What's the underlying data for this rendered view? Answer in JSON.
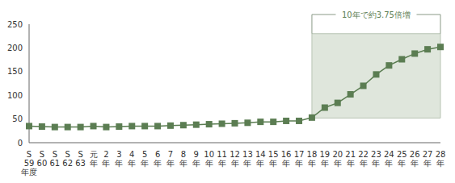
{
  "chart_data": {
    "type": "line",
    "categories": [
      "S59年度",
      "S60",
      "S61",
      "S62",
      "S63",
      "元年",
      "2年",
      "3年",
      "4年",
      "5年",
      "6年",
      "7年",
      "8年",
      "9年",
      "10年",
      "11年",
      "12年",
      "13年",
      "14年",
      "15年",
      "16年",
      "17年",
      "18年",
      "19年",
      "20年",
      "21年",
      "22年",
      "23年",
      "24年",
      "25年",
      "26年",
      "27年",
      "28年"
    ],
    "values": [
      35,
      34,
      33,
      33,
      33,
      35,
      33,
      34,
      35,
      35,
      35,
      36,
      37,
      38,
      39,
      40,
      41,
      42,
      44,
      44,
      46,
      46,
      53,
      74,
      84,
      102,
      120,
      144,
      163,
      176,
      188,
      197,
      202
    ],
    "color": "#5b7d52",
    "marker": "square",
    "ylim": [
      0,
      250
    ],
    "yticks": [
      0,
      50,
      100,
      150,
      200,
      250
    ],
    "grid": false,
    "highlight": {
      "x1": "18年",
      "x2": "28年",
      "y1": 52,
      "y2": 230,
      "label": "10年で約3.75倍増"
    }
  }
}
